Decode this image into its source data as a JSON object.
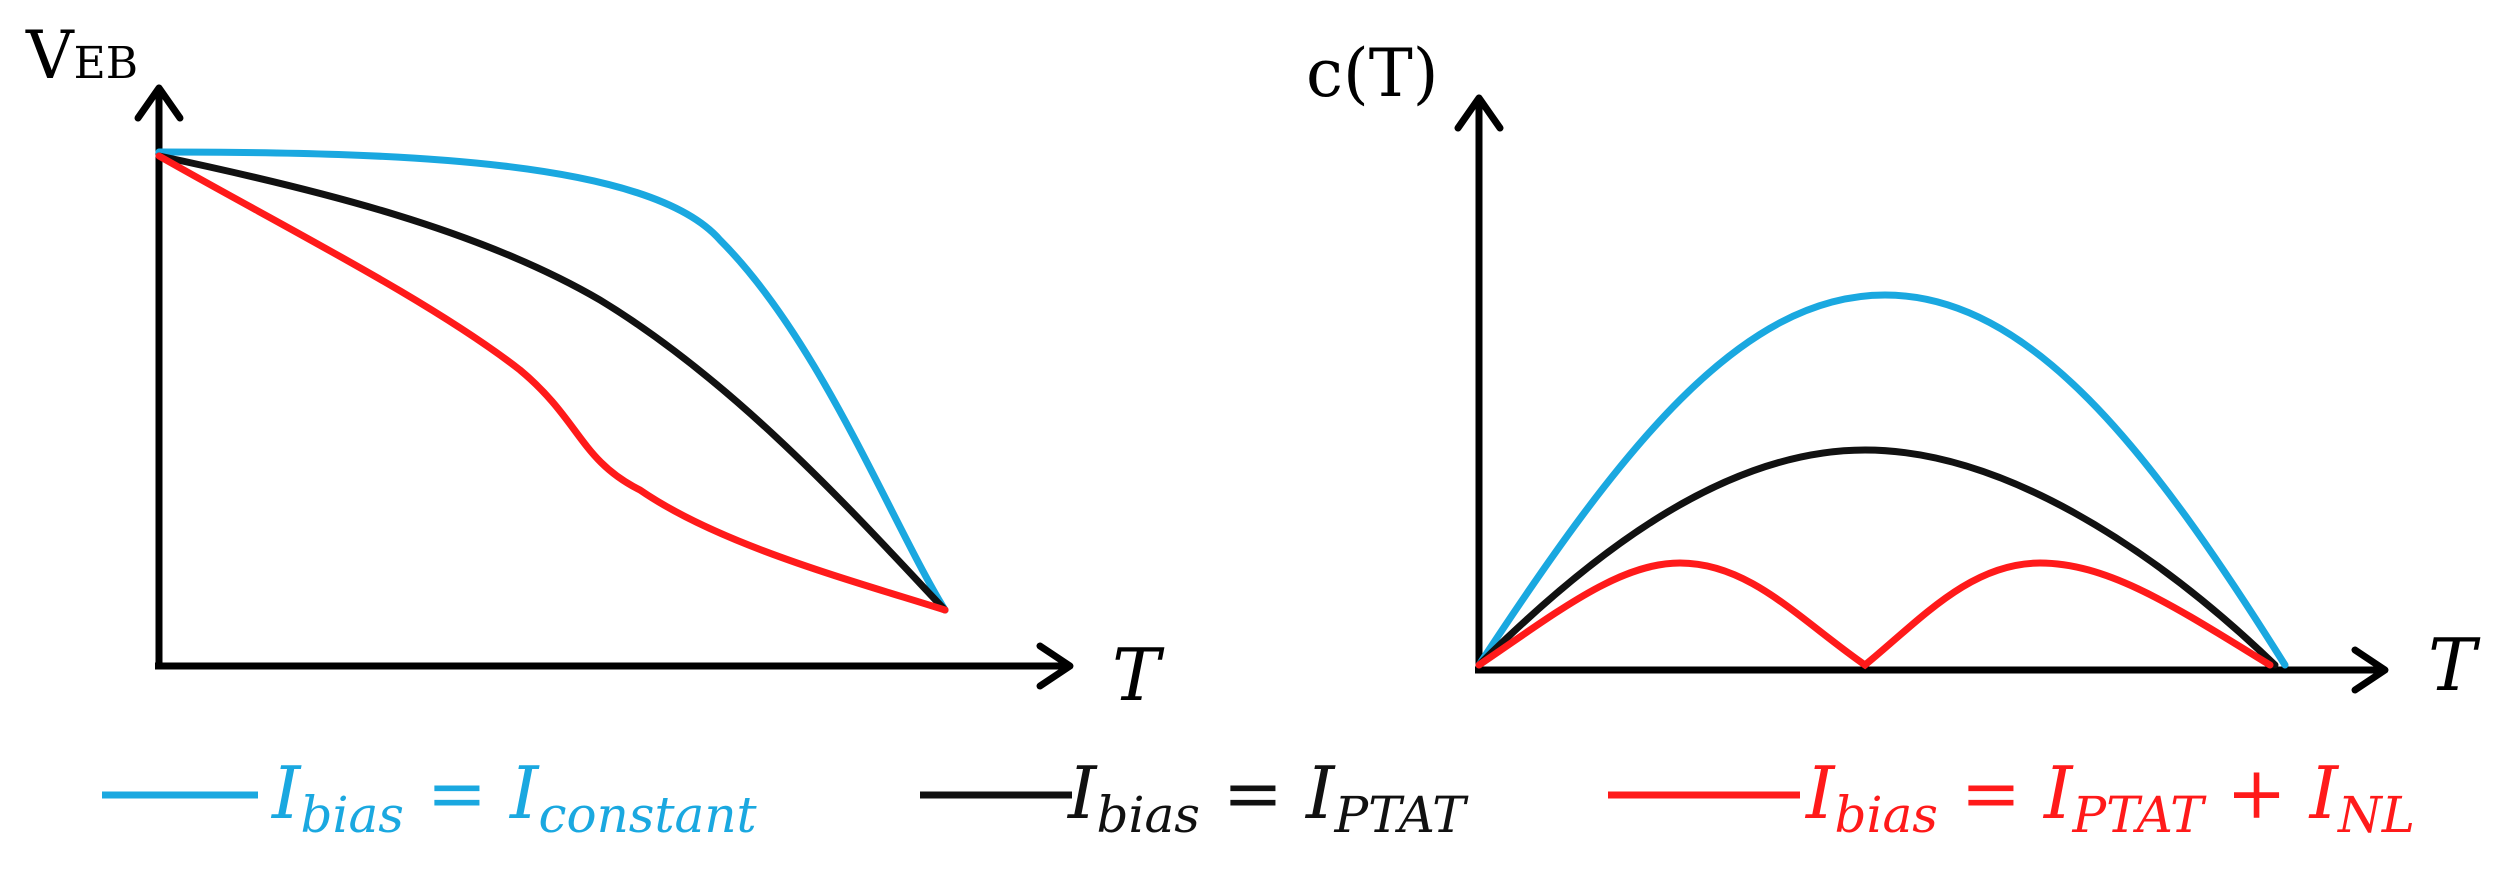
{
  "colors": {
    "constant": "#1aa8e0",
    "ptat": "#111111",
    "nl": "#ff1a1a",
    "axis": "#000000"
  },
  "left_plot": {
    "ylabel_main": "V",
    "ylabel_sub": "EB",
    "xlabel": "T"
  },
  "right_plot": {
    "ylabel": "c(T)",
    "xlabel": "T"
  },
  "legend": [
    {
      "key": "constant",
      "main": "I",
      "sub": "bias",
      "eq": " = ",
      "rhs_main": "I",
      "rhs_sub": "constant",
      "plus": "",
      "rhs2_main": "",
      "rhs2_sub": ""
    },
    {
      "key": "ptat",
      "main": "I",
      "sub": "bias",
      "eq": " = ",
      "rhs_main": "I",
      "rhs_sub": "PTAT",
      "plus": "",
      "rhs2_main": "",
      "rhs2_sub": ""
    },
    {
      "key": "nl",
      "main": "I",
      "sub": "bias",
      "eq": " = ",
      "rhs_main": "I",
      "rhs_sub": "PTAT",
      "plus": " + ",
      "rhs2_main": "I",
      "rhs2_sub": "NL"
    }
  ]
}
